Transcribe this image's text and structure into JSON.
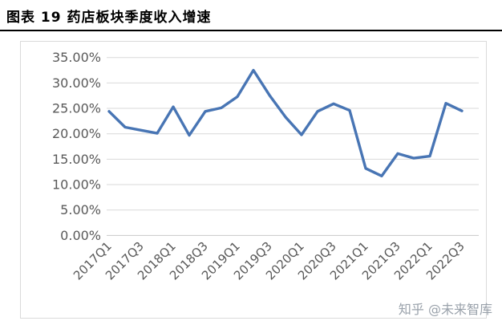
{
  "header": {
    "title": "图表 19  药店板块季度收入增速"
  },
  "watermark": {
    "text": "知乎 @未来智库"
  },
  "chart_data": {
    "type": "line",
    "title": "药店板块季度收入增速",
    "categories": [
      "2017Q1",
      "2017Q2",
      "2017Q3",
      "2017Q4",
      "2018Q1",
      "2018Q2",
      "2018Q3",
      "2018Q4",
      "2019Q1",
      "2019Q2",
      "2019Q3",
      "2019Q4",
      "2020Q1",
      "2020Q2",
      "2020Q3",
      "2020Q4",
      "2021Q1",
      "2021Q2",
      "2021Q3",
      "2021Q4",
      "2022Q1",
      "2022Q2",
      "2022Q3"
    ],
    "x_tick_labels": [
      "2017Q1",
      "2017Q3",
      "2018Q1",
      "2018Q3",
      "2019Q1",
      "2019Q3",
      "2020Q1",
      "2020Q3",
      "2021Q1",
      "2021Q3",
      "2022Q1",
      "2022Q3"
    ],
    "series": [
      {
        "name": "季度收入增速",
        "values": [
          24.4,
          21.3,
          20.7,
          20.1,
          25.3,
          19.7,
          24.4,
          25.1,
          27.3,
          32.5,
          27.6,
          23.3,
          19.8,
          24.4,
          25.9,
          24.6,
          13.2,
          11.7,
          16.1,
          15.2,
          15.6,
          26.0,
          24.5
        ]
      }
    ],
    "ylim": [
      0,
      35
    ],
    "ytick_step": 5,
    "ytick_labels": [
      "0.00%",
      "5.00%",
      "10.00%",
      "15.00%",
      "20.00%",
      "25.00%",
      "30.00%",
      "35.00%"
    ],
    "grid": true,
    "legend": "none",
    "line_color": "#4875b4",
    "axis_label_color": "#595959",
    "gridline_color": "#d9d9d9",
    "axisline_color": "#c8c8c8",
    "frame_color": "#dadada"
  }
}
